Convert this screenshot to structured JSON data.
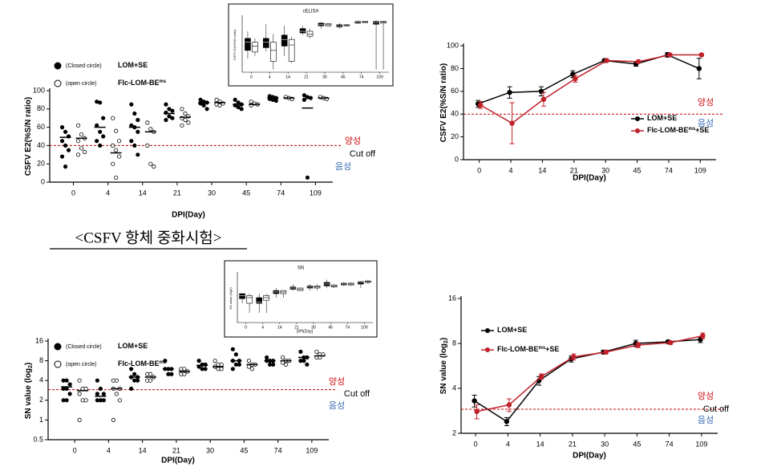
{
  "heading": "<CSFV 항체 중화시험>",
  "chart_data": [
    {
      "type": "dot",
      "y_label": "CSFV E2(%S/N ratio)",
      "x_label": "DPI(Day)",
      "categories": [
        "0",
        "4",
        "14",
        "21",
        "30",
        "45",
        "74",
        "109"
      ],
      "ylim": [
        0,
        100
      ],
      "yticks": [
        0,
        20,
        40,
        60,
        80,
        100
      ],
      "cutoff": 40,
      "annotations": {
        "positive": "양성",
        "cutoff": "Cut off",
        "negative": "음성"
      },
      "series": [
        {
          "marker_label": "(Closed circle)",
          "name": "LOM+SE",
          "color": "#000000",
          "points": [
            [
              60,
              55,
              50,
              45,
              40,
              35,
              28,
              17
            ],
            [
              88,
              87,
              70,
              62,
              55,
              50,
              45,
              40
            ],
            [
              85,
              75,
              68,
              62,
              60,
              55,
              45,
              40,
              30
            ],
            [
              85,
              80,
              78,
              76,
              72,
              70,
              68
            ],
            [
              90,
              88,
              87,
              86,
              84,
              80
            ],
            [
              90,
              87,
              85,
              84,
              82,
              80
            ],
            [
              94,
              93,
              92,
              91,
              90,
              89
            ],
            [
              95,
              93,
              92,
              90,
              5
            ]
          ],
          "means": [
            49,
            60,
            60,
            75,
            87,
            85,
            92,
            81
          ]
        },
        {
          "marker_label": "(open circle)",
          "name": "Flc-LOM-BE",
          "name_sup": "ms",
          "color": "#ffffff",
          "points": [
            [
              62,
              52,
              48,
              45,
              37,
              33,
              30
            ],
            [
              70,
              56,
              45,
              40,
              35,
              28,
              20,
              5
            ],
            [
              65,
              58,
              55,
              40,
              20,
              17
            ],
            [
              80,
              75,
              72,
              70,
              68,
              65,
              62
            ],
            [
              90,
              88,
              86,
              85,
              84
            ],
            [
              88,
              86,
              85,
              84
            ],
            [
              93,
              92,
              91
            ],
            [
              93,
              92,
              91
            ]
          ],
          "means": [
            48,
            32,
            55,
            71,
            87,
            85,
            92,
            92
          ]
        }
      ]
    },
    {
      "type": "box",
      "title": "cELISA",
      "y_label": "CSFV E2(%S/N ratio)",
      "categories": [
        "0",
        "4",
        "14",
        "21",
        "30",
        "45",
        "74",
        "109"
      ],
      "ylim": [
        0,
        100
      ],
      "series": [
        {
          "color": "#000000",
          "boxes": [
            [
              25,
              40,
              55,
              62,
              75
            ],
            [
              38,
              45,
              55,
              62,
              88
            ],
            [
              30,
              48,
              60,
              68,
              85
            ],
            [
              68,
              72,
              75,
              80,
              85
            ],
            [
              80,
              85,
              87,
              90,
              92
            ],
            [
              80,
              83,
              85,
              87,
              90
            ],
            [
              89,
              90,
              92,
              93,
              95
            ],
            [
              5,
              88,
              91,
              93,
              95
            ]
          ]
        },
        {
          "color": "#ffffff",
          "boxes": [
            [
              30,
              37,
              48,
              55,
              62
            ],
            [
              5,
              20,
              40,
              55,
              70
            ],
            [
              17,
              20,
              50,
              60,
              65
            ],
            [
              62,
              66,
              70,
              75,
              80
            ],
            [
              84,
              85,
              87,
              89,
              90
            ],
            [
              84,
              85,
              86,
              87,
              88
            ],
            [
              91,
              91,
              92,
              93,
              93
            ],
            [
              5,
              90,
              92,
              93,
              94
            ]
          ]
        }
      ]
    },
    {
      "type": "line",
      "y_label": "CSFV E2(%S/N ratio)",
      "x_label": "DPI(Day)",
      "categories": [
        "0",
        "4",
        "14",
        "21",
        "30",
        "45",
        "74",
        "109"
      ],
      "ylim": [
        0,
        100
      ],
      "yticks": [
        0,
        20,
        40,
        60,
        80,
        100
      ],
      "cutoff": 40,
      "annotations": {
        "positive": "양성",
        "negative": "음성"
      },
      "series": [
        {
          "name": "LOM+SE",
          "color": "#000000",
          "values": [
            49,
            59,
            60,
            75,
            87,
            84,
            92,
            80
          ],
          "errors": [
            3,
            5,
            4,
            3,
            1,
            2,
            2,
            9
          ]
        },
        {
          "name": "Flc-LOM-BE",
          "name_sup": "ms",
          "name_suffix": "+SE",
          "color": "#c0202a",
          "values": [
            48,
            32,
            53,
            71,
            87,
            86,
            92,
            92
          ],
          "errors": [
            3,
            18,
            6,
            3,
            1,
            1,
            1,
            1
          ]
        }
      ]
    },
    {
      "type": "dot",
      "y_label": "SN value (log",
      "y_label_sub": "2",
      "y_label_end": ")",
      "x_label": "DPI(Day)",
      "categories": [
        "0",
        "4",
        "14",
        "21",
        "30",
        "45",
        "74",
        "109"
      ],
      "log_base": 2,
      "ylim": [
        0.5,
        16
      ],
      "yticks": [
        0.5,
        1,
        2,
        4,
        8,
        16
      ],
      "cutoff": 2.9,
      "annotations": {
        "positive": "양성",
        "cutoff": "Cut off",
        "negative": "음성"
      },
      "series": [
        {
          "marker_label": "(Closed circle)",
          "name": "LOM+SE",
          "color": "#000000",
          "points": [
            [
              4,
              4,
              3.5,
              3,
              3,
              2.5,
              2,
              2
            ],
            [
              4,
              3,
              2.5,
              2.5,
              2,
              2,
              2,
              2
            ],
            [
              6,
              5,
              4.5,
              4.5,
              4,
              4,
              3
            ],
            [
              8,
              6,
              6,
              6,
              5,
              5
            ],
            [
              8,
              7,
              7,
              6.5,
              6,
              6
            ],
            [
              12,
              10,
              8,
              8,
              7,
              7,
              6
            ],
            [
              9,
              8,
              8,
              8,
              7,
              7
            ],
            [
              11,
              9,
              9,
              8,
              8,
              7
            ]
          ],
          "means": [
            3.2,
            2.3,
            4.5,
            6,
            6.8,
            8,
            8,
            9
          ]
        },
        {
          "marker_label": "(open circle)",
          "name": "Flc-LOM-BE",
          "name_sup": "ms",
          "color": "#ffffff",
          "points": [
            [
              4,
              3,
              3,
              2.5,
              2,
              2,
              1
            ],
            [
              4,
              4,
              3,
              3,
              2.5,
              2,
              1
            ],
            [
              5,
              5,
              4.5,
              4,
              4
            ],
            [
              6,
              6,
              5.5,
              5,
              5
            ],
            [
              8,
              7,
              7,
              6.5,
              6,
              6
            ],
            [
              8,
              7,
              7,
              6.5,
              6
            ],
            [
              9,
              8,
              8,
              7.5,
              7
            ],
            [
              11,
              10,
              10,
              9,
              9
            ]
          ],
          "means": [
            2.8,
            3,
            4.5,
            5.5,
            6.5,
            7,
            8,
            9.5
          ]
        }
      ]
    },
    {
      "type": "box",
      "title": "SN",
      "y_label": "SN value (log2)",
      "x_label": "DPI(Day)",
      "categories": [
        "0",
        "4",
        "14",
        "21",
        "30",
        "45",
        "74",
        "109"
      ],
      "log_base": 2,
      "ylim": [
        0.5,
        16
      ],
      "series": [
        {
          "color": "#000000",
          "boxes": [
            [
              2,
              2.8,
              3.5,
              4,
              4
            ],
            [
              1,
              2,
              2.2,
              3,
              4
            ],
            [
              3,
              4,
              4.5,
              5,
              6
            ],
            [
              5,
              5.5,
              6,
              6.5,
              8
            ],
            [
              5,
              6,
              6.5,
              7,
              8
            ],
            [
              6,
              7,
              8,
              9,
              11
            ],
            [
              7,
              7.5,
              8,
              8.5,
              9
            ],
            [
              6,
              8,
              9,
              9.5,
              10
            ]
          ]
        },
        {
          "color": "#ffffff",
          "boxes": [
            [
              1,
              2,
              3,
              3.5,
              4
            ],
            [
              1,
              2.5,
              3,
              3.5,
              4
            ],
            [
              3,
              4,
              4.5,
              5,
              5
            ],
            [
              5,
              5,
              5.5,
              6,
              6
            ],
            [
              5,
              6,
              6.5,
              7,
              8
            ],
            [
              6,
              6.5,
              7,
              7.5,
              8
            ],
            [
              7,
              7.5,
              8,
              8.5,
              9
            ],
            [
              8,
              9,
              9.5,
              10,
              11
            ]
          ]
        }
      ]
    },
    {
      "type": "line",
      "y_label": "SN value (log",
      "y_label_sub": "2",
      "y_label_end": ")",
      "x_label": "DPI(Day)",
      "categories": [
        "0",
        "4",
        "14",
        "21",
        "30",
        "45",
        "74",
        "109"
      ],
      "log_base": 2,
      "ylim": [
        2,
        16
      ],
      "yticks": [
        2,
        4,
        8,
        16
      ],
      "cutoff": 2.9,
      "annotations": {
        "positive": "양성",
        "cutoff": "Cut off",
        "negative": "음성"
      },
      "series": [
        {
          "name": "LOM+SE",
          "color": "#000000",
          "values": [
            3.3,
            2.4,
            4.5,
            6.3,
            7,
            8,
            8.2,
            8.5
          ],
          "errors": [
            0.3,
            0.15,
            0.3,
            0.3,
            0.2,
            0.4,
            0.2,
            0.4
          ]
        },
        {
          "name": "Flc-LOM-BE",
          "name_sup": "ms",
          "name_suffix": "+SE",
          "color": "#c0202a",
          "values": [
            2.8,
            3.1,
            4.8,
            6.5,
            7,
            7.8,
            8.1,
            9
          ],
          "errors": [
            0.3,
            0.3,
            0.2,
            0.3,
            0.2,
            0.3,
            0.2,
            0.4
          ]
        }
      ]
    }
  ]
}
